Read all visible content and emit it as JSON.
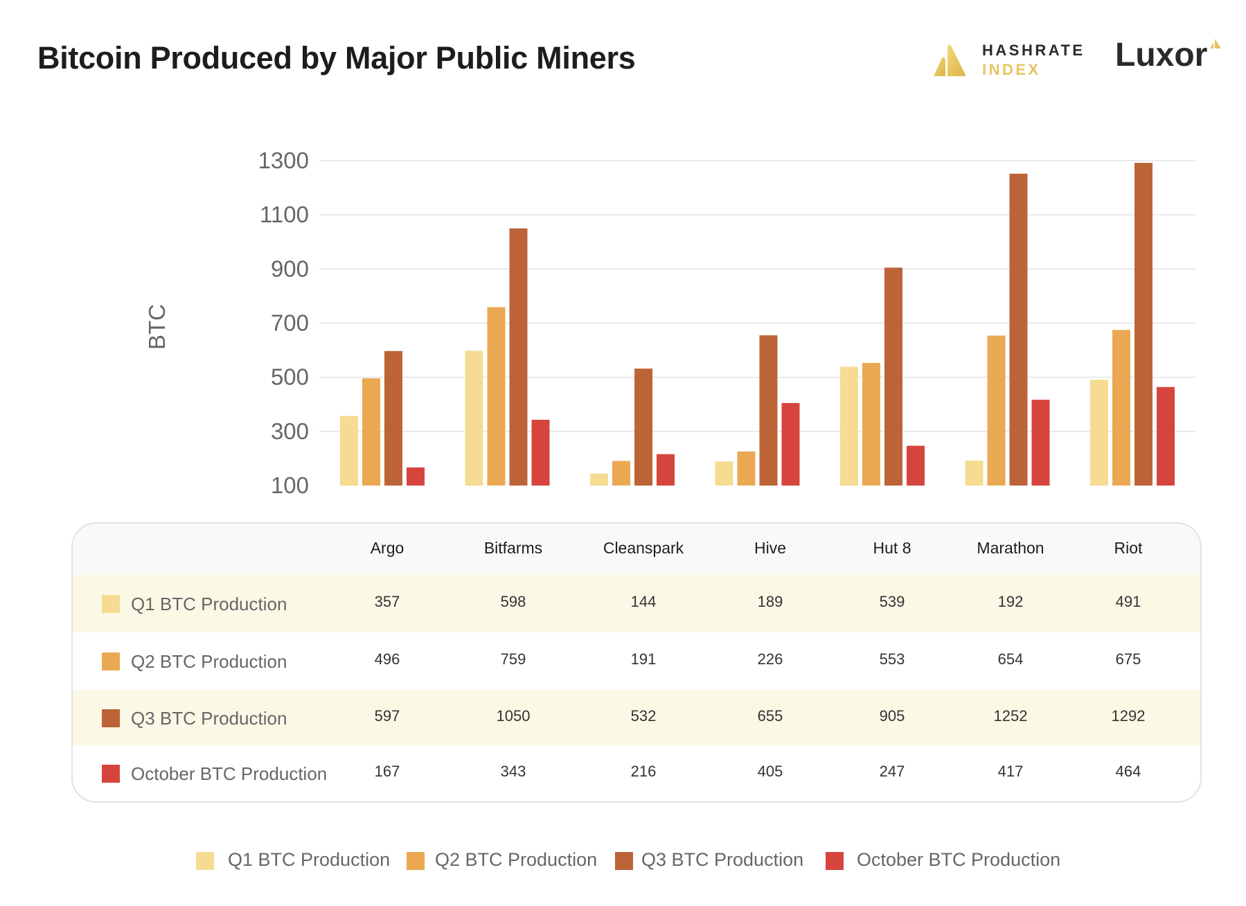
{
  "header": {
    "title": "Bitcoin Produced by Major Public Miners",
    "logo_hashrate_line1": "HASHRATE",
    "logo_hashrate_line2": "INDEX",
    "logo_luxor": "Luxor"
  },
  "colors": {
    "q1": "#f5dc92",
    "q2": "#eba852",
    "q3": "#bc6438",
    "oct": "#d6453d",
    "row_highlight": "#fcf8e6"
  },
  "chart_data": {
    "type": "bar",
    "title": "Bitcoin Produced by Major Public Miners",
    "xlabel": "",
    "ylabel": "BTC",
    "ylim": [
      100,
      1300
    ],
    "yticks": [
      "1300",
      "1100",
      "900",
      "700",
      "500",
      "300",
      "100"
    ],
    "ytick_values": [
      1300,
      1100,
      900,
      700,
      500,
      300,
      100
    ],
    "grid": true,
    "legend_position": "bottom",
    "categories": [
      "Argo",
      "Bitfarms",
      "Cleanspark",
      "Hive",
      "Hut 8",
      "Marathon",
      "Riot"
    ],
    "series": [
      {
        "name": "Q1 BTC Production",
        "color": "#f5dc92",
        "values": [
          357,
          598,
          144,
          189,
          539,
          192,
          491
        ]
      },
      {
        "name": "Q2 BTC Production",
        "color": "#eba852",
        "values": [
          496,
          759,
          191,
          226,
          553,
          654,
          675
        ]
      },
      {
        "name": "Q3 BTC Production",
        "color": "#bc6438",
        "values": [
          597,
          1050,
          532,
          655,
          905,
          1252,
          1292
        ]
      },
      {
        "name": "October BTC Production",
        "color": "#d6453d",
        "values": [
          167,
          343,
          216,
          405,
          247,
          417,
          464
        ]
      }
    ]
  }
}
